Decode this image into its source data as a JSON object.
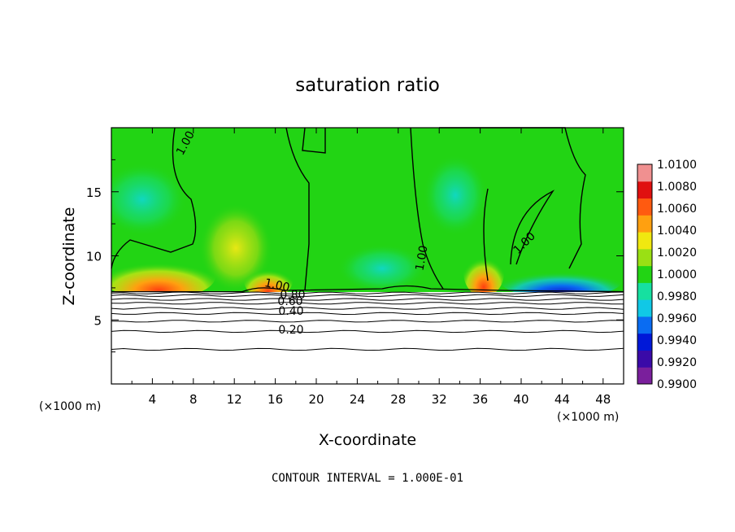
{
  "chart_data": {
    "type": "heatmap",
    "title": "saturation ratio",
    "xlabel": "X-coordinate",
    "ylabel": "Z-coordinate",
    "x_unit_label": "(×1000 m)",
    "y_unit_label": "(×1000 m)",
    "footer": "CONTOUR INTERVAL = 1.000E-01",
    "xlim": [
      0,
      50
    ],
    "ylim": [
      0,
      20
    ],
    "x_ticks": [
      "4",
      "8",
      "12",
      "16",
      "20",
      "24",
      "28",
      "32",
      "36",
      "40",
      "44",
      "48"
    ],
    "x_tick_values": [
      4,
      8,
      12,
      16,
      20,
      24,
      28,
      32,
      36,
      40,
      44,
      48
    ],
    "y_ticks": [
      "5",
      "10",
      "15"
    ],
    "y_tick_values": [
      5,
      10,
      15
    ],
    "colorbar": {
      "labels": [
        "1.0100",
        "1.0080",
        "1.0060",
        "1.0040",
        "1.0020",
        "1.0000",
        "0.9980",
        "0.9960",
        "0.9940",
        "0.9920",
        "0.9900"
      ],
      "range": [
        0.99,
        1.01
      ],
      "colors": [
        "#7a1f9c",
        "#3a0aa8",
        "#0018d8",
        "#0a6cf2",
        "#10c8e6",
        "#16e0a0",
        "#22d414",
        "#9ae014",
        "#f0e810",
        "#ffa010",
        "#ff5a10",
        "#e01010",
        "#f09090"
      ]
    },
    "contour_labels": [
      "1.00",
      "1.00",
      "1.00",
      "1.00",
      "0.80",
      "0.60",
      "0.40",
      "0.20"
    ],
    "contour_interval": 0.1,
    "contour_levels_below_7km": [
      {
        "level": 0.2,
        "z": 4.1
      },
      {
        "level": 0.1,
        "z": 2.7
      },
      {
        "level": 0.3,
        "z": 4.9
      },
      {
        "level": 0.4,
        "z": 5.5
      },
      {
        "level": 0.5,
        "z": 5.9
      },
      {
        "level": 0.6,
        "z": 6.3
      },
      {
        "level": 0.7,
        "z": 6.6
      },
      {
        "level": 0.8,
        "z": 6.9
      },
      {
        "level": 0.9,
        "z": 7.1
      }
    ],
    "cloud_base_z": 7.2
  }
}
